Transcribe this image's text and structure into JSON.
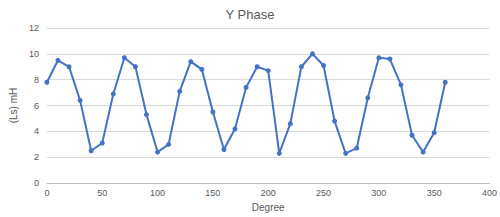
{
  "chart_data": {
    "type": "line",
    "title": "Y Phase",
    "x_label": "Degree",
    "y_label": "(Ls) mH",
    "x": [
      0,
      10,
      20,
      30,
      40,
      50,
      60,
      70,
      80,
      90,
      100,
      110,
      120,
      130,
      140,
      150,
      160,
      170,
      180,
      190,
      200,
      210,
      220,
      230,
      240,
      250,
      260,
      270,
      280,
      290,
      300,
      310,
      320,
      330,
      340,
      350,
      360
    ],
    "values": [
      7.8,
      9.5,
      9.0,
      6.4,
      2.5,
      3.1,
      6.9,
      9.7,
      9.0,
      5.3,
      2.4,
      3.0,
      7.1,
      9.4,
      8.8,
      5.5,
      2.6,
      4.2,
      7.4,
      9.0,
      8.7,
      2.3,
      4.6,
      9.0,
      10.0,
      9.1,
      4.8,
      2.3,
      2.7,
      6.6,
      9.7,
      9.6,
      7.6,
      3.7,
      2.4,
      3.9,
      7.8
    ],
    "color": "#4472c4",
    "marker": "circle",
    "xlim": [
      0,
      400
    ],
    "xticks": [
      0,
      50,
      100,
      150,
      200,
      250,
      300,
      350,
      400
    ],
    "ylim": [
      0,
      12
    ],
    "yticks": [
      0,
      2,
      4,
      6,
      8,
      10,
      12
    ],
    "grid": true
  }
}
